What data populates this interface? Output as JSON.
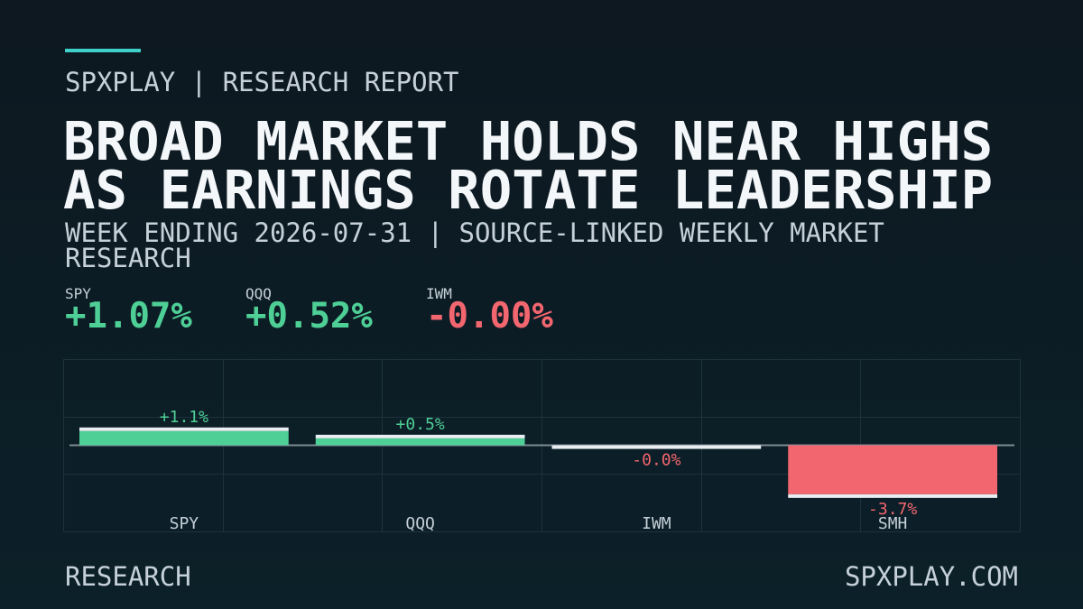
{
  "header": {
    "kicker": "SPXPLAY | RESEARCH REPORT",
    "title_lines": [
      "BROAD MARKET HOLDS NEAR HIGHS",
      "AS EARNINGS ROTATE LEADERSHIP"
    ],
    "subtitle": "WEEK ENDING 2026-07-31 | SOURCE-LINKED WEEKLY MARKET RESEARCH",
    "stats": [
      {
        "label": "SPY",
        "value": "+1.07%"
      },
      {
        "label": "QQQ",
        "value": "+0.52%"
      },
      {
        "label": "IWM",
        "value": "-0.00%"
      }
    ]
  },
  "chart_data": {
    "type": "bar",
    "categories": [
      "SPY",
      "QQQ",
      "IWM",
      "SMH"
    ],
    "values": [
      1.07,
      0.52,
      -0.004,
      -3.7
    ],
    "value_labels": [
      "+1.1%",
      "+0.5%",
      "-0.0%",
      "-3.7%"
    ],
    "ylim": [
      -6.5,
      6.5
    ],
    "positive_color": "#4ecf96",
    "negative_color": "#f2666f"
  },
  "footer": {
    "left": "RESEARCH",
    "right": "SPXPLAY.COM"
  }
}
